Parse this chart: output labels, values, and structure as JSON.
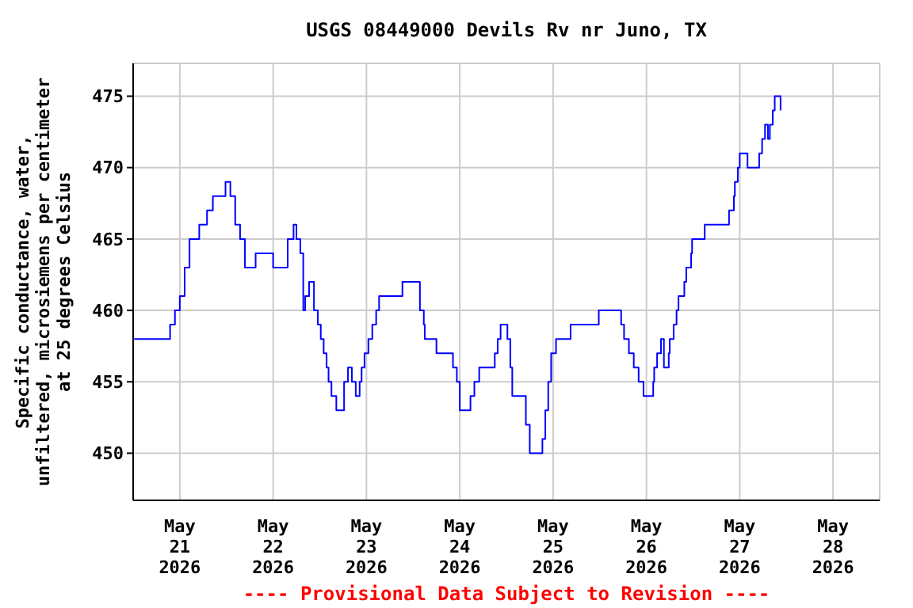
{
  "chart_data": {
    "type": "step",
    "title": "USGS 08449000 Devils Rv nr Juno, TX",
    "ylabel": "Specific conductance, water,\nunfiltered, microsiemens per centimeter\nat 25 degrees Celsius",
    "annotations": [
      "---- Provisional Data Subject to Revision ----"
    ],
    "xlim": [
      "2026-05-20T12:00",
      "2026-05-28T12:00"
    ],
    "xticks": [
      {
        "value": "2026-05-21",
        "label": "May\n21\n2026"
      },
      {
        "value": "2026-05-22",
        "label": "May\n22\n2026"
      },
      {
        "value": "2026-05-23",
        "label": "May\n23\n2026"
      },
      {
        "value": "2026-05-24",
        "label": "May\n24\n2026"
      },
      {
        "value": "2026-05-25",
        "label": "May\n25\n2026"
      },
      {
        "value": "2026-05-26",
        "label": "May\n26\n2026"
      },
      {
        "value": "2026-05-27",
        "label": "May\n27\n2026"
      },
      {
        "value": "2026-05-28",
        "label": "May\n28\n2026"
      }
    ],
    "ylim": [
      446.7,
      477.3
    ],
    "yticks": [
      450,
      455,
      460,
      465,
      470,
      475
    ],
    "grid": true,
    "marker": "none",
    "line_style": "solid",
    "series": [
      {
        "color": "#0000ff",
        "x": [
          "2026-05-20T12:15",
          "2026-05-20T21:15",
          "2026-05-20T21:30",
          "2026-05-20T22:45",
          "2026-05-21T00:00",
          "2026-05-21T01:15",
          "2026-05-21T02:30",
          "2026-05-21T04:30",
          "2026-05-21T05:00",
          "2026-05-21T07:00",
          "2026-05-21T08:30",
          "2026-05-21T11:45",
          "2026-05-21T13:00",
          "2026-05-21T14:15",
          "2026-05-21T15:30",
          "2026-05-21T16:45",
          "2026-05-21T19:00",
          "2026-05-21T19:30",
          "2026-05-21T23:30",
          "2026-05-22T00:00",
          "2026-05-22T03:15",
          "2026-05-22T03:45",
          "2026-05-22T05:15",
          "2026-05-22T06:00",
          "2026-05-22T07:00",
          "2026-05-22T07:45",
          "2026-05-22T08:15",
          "2026-05-22T09:15",
          "2026-05-22T10:30",
          "2026-05-22T11:30",
          "2026-05-22T12:15",
          "2026-05-22T13:00",
          "2026-05-22T13:45",
          "2026-05-22T14:15",
          "2026-05-22T15:00",
          "2026-05-22T16:15",
          "2026-05-22T17:30",
          "2026-05-22T18:15",
          "2026-05-22T19:15",
          "2026-05-22T20:00",
          "2026-05-22T20:15",
          "2026-05-22T21:15",
          "2026-05-22T22:00",
          "2026-05-22T22:15",
          "2026-05-22T22:45",
          "2026-05-22T23:30",
          "2026-05-23T00:30",
          "2026-05-23T01:30",
          "2026-05-23T02:30",
          "2026-05-23T03:15",
          "2026-05-23T09:00",
          "2026-05-23T09:15",
          "2026-05-23T13:00",
          "2026-05-23T13:45",
          "2026-05-23T14:45",
          "2026-05-23T15:00",
          "2026-05-23T17:00",
          "2026-05-23T18:00",
          "2026-05-23T21:30",
          "2026-05-23T22:15",
          "2026-05-23T23:15",
          "2026-05-24T00:00",
          "2026-05-24T02:30",
          "2026-05-24T02:45",
          "2026-05-24T03:45",
          "2026-05-24T05:00",
          "2026-05-24T08:15",
          "2026-05-24T09:00",
          "2026-05-24T09:45",
          "2026-05-24T10:30",
          "2026-05-24T11:30",
          "2026-05-24T12:15",
          "2026-05-24T13:00",
          "2026-05-24T13:30",
          "2026-05-24T16:45",
          "2026-05-24T17:00",
          "2026-05-24T18:00",
          "2026-05-24T20:15",
          "2026-05-24T21:15",
          "2026-05-24T22:00",
          "2026-05-24T22:45",
          "2026-05-24T23:30",
          "2026-05-25T00:45",
          "2026-05-25T03:45",
          "2026-05-25T04:30",
          "2026-05-25T09:30",
          "2026-05-25T11:45",
          "2026-05-25T16:45",
          "2026-05-25T17:30",
          "2026-05-25T18:15",
          "2026-05-25T19:30",
          "2026-05-25T20:45",
          "2026-05-25T22:00",
          "2026-05-25T23:15",
          "2026-05-26T00:45",
          "2026-05-26T01:45",
          "2026-05-26T02:00",
          "2026-05-26T02:45",
          "2026-05-26T03:45",
          "2026-05-26T04:30",
          "2026-05-26T05:15",
          "2026-05-26T05:45",
          "2026-05-26T06:00",
          "2026-05-26T07:00",
          "2026-05-26T07:45",
          "2026-05-26T08:15",
          "2026-05-26T09:00",
          "2026-05-26T09:45",
          "2026-05-26T10:15",
          "2026-05-26T11:30",
          "2026-05-26T11:45",
          "2026-05-26T13:30",
          "2026-05-26T15:00",
          "2026-05-26T20:45",
          "2026-05-26T21:15",
          "2026-05-26T22:00",
          "2026-05-26T22:30",
          "2026-05-26T22:45",
          "2026-05-26T23:30",
          "2026-05-27T00:00",
          "2026-05-27T01:15",
          "2026-05-27T02:00",
          "2026-05-27T04:30",
          "2026-05-27T05:00",
          "2026-05-27T05:45",
          "2026-05-27T06:30",
          "2026-05-27T07:15",
          "2026-05-27T07:45",
          "2026-05-27T08:30",
          "2026-05-27T09:00",
          "2026-05-27T10:15",
          "2026-05-27T10:30"
        ],
        "values": [
          458,
          458,
          459,
          460,
          461,
          463,
          465,
          465,
          466,
          467,
          468,
          469,
          468,
          466,
          465,
          463,
          463,
          464,
          464,
          463,
          463,
          465,
          466,
          465,
          464,
          460,
          461,
          462,
          460,
          459,
          458,
          457,
          456,
          455,
          454,
          453,
          453,
          455,
          456,
          456,
          455,
          454,
          454,
          455,
          456,
          457,
          458,
          459,
          460,
          461,
          461,
          462,
          462,
          460,
          459,
          458,
          458,
          457,
          457,
          456,
          455,
          453,
          453,
          454,
          455,
          456,
          456,
          457,
          458,
          459,
          459,
          458,
          456,
          454,
          454,
          452,
          450,
          450,
          451,
          453,
          455,
          457,
          458,
          458,
          459,
          459,
          460,
          460,
          459,
          458,
          457,
          456,
          455,
          454,
          454,
          455,
          456,
          457,
          458,
          456,
          456,
          457,
          458,
          459,
          460,
          461,
          461,
          462,
          463,
          464,
          465,
          465,
          466,
          466,
          467,
          467,
          468,
          469,
          470,
          471,
          471,
          470,
          470,
          471,
          472,
          473,
          472,
          473,
          474,
          475,
          475,
          474
        ]
      }
    ]
  }
}
